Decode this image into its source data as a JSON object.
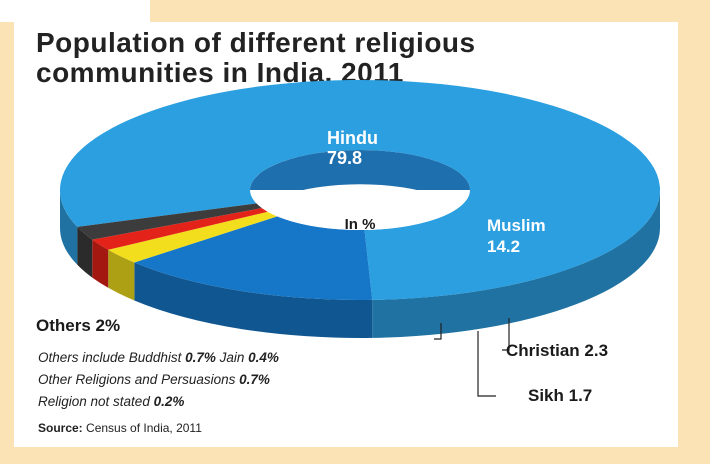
{
  "title_line1": "Population of different religious",
  "title_line2": "communities in India, 2011",
  "center_label": "In %",
  "chart_data": {
    "type": "pie",
    "style": "3d-donut",
    "title": "Population of different religious communities in India, 2011",
    "unit": "In %",
    "slices": [
      {
        "label": "Hindu",
        "value": 79.8,
        "color": "#2b9fe0"
      },
      {
        "label": "Muslim",
        "value": 14.2,
        "color": "#1677c8"
      },
      {
        "label": "Christian",
        "value": 2.3,
        "color": "#f2de1c"
      },
      {
        "label": "Sikh",
        "value": 1.7,
        "color": "#e32319"
      },
      {
        "label": "Others",
        "value": 2,
        "color": "#3c3c3c"
      }
    ],
    "others_breakdown": [
      {
        "label": "Buddhist",
        "value": 0.7
      },
      {
        "label": "Jain",
        "value": 0.4
      },
      {
        "label": "Other Religions and Persuasions",
        "value": 0.7
      },
      {
        "label": "Religion not stated",
        "value": 0.2
      }
    ]
  },
  "labels": {
    "hindu_name": "Hindu",
    "hindu_value": "79.8",
    "muslim_name": "Muslim",
    "muslim_value": "14.2",
    "christian": "Christian 2.3",
    "sikh": "Sikh 1.7",
    "others": "Others 2%"
  },
  "notes": {
    "line1_prefix": "Others include Buddhist ",
    "line1_b1": "0.7%",
    "line1_mid": " Jain ",
    "line1_b2": "0.4%",
    "line2_prefix": "Other Religions and Persuasions ",
    "line2_b": "0.7%",
    "line3_prefix": "Religion not stated ",
    "line3_b": "0.2%"
  },
  "source": {
    "label": "Source:",
    "text": " Census of India, 2011"
  }
}
